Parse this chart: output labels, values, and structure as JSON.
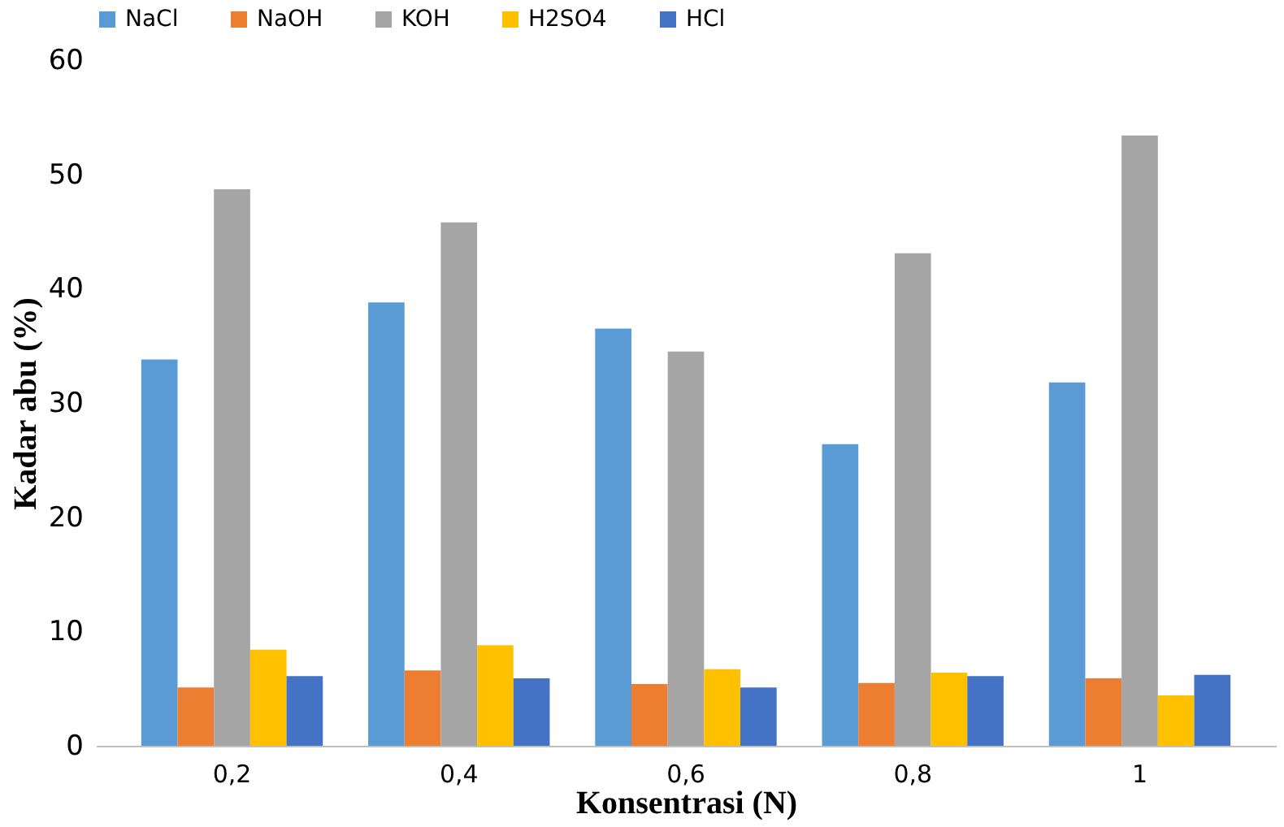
{
  "chart_data": {
    "type": "bar",
    "xlabel": "Konsentrasi (N)",
    "ylabel": "Kadar abu (%)",
    "categories": [
      "0,2",
      "0,4",
      "0,6",
      "0,8",
      "1"
    ],
    "series": [
      {
        "name": "NaCl",
        "color": "#5b9bd5",
        "values": [
          33.8,
          38.8,
          36.5,
          26.4,
          31.8
        ]
      },
      {
        "name": "NaOH",
        "color": "#ed7d31",
        "values": [
          5.1,
          6.6,
          5.4,
          5.5,
          5.9
        ]
      },
      {
        "name": "KOH",
        "color": "#a5a5a5",
        "values": [
          48.7,
          45.8,
          34.5,
          43.1,
          53.4
        ]
      },
      {
        "name": "H2SO4",
        "color": "#ffc000",
        "values": [
          8.4,
          8.8,
          6.7,
          6.4,
          4.4
        ]
      },
      {
        "name": "HCl",
        "color": "#4472c4",
        "values": [
          6.1,
          5.9,
          5.1,
          6.1,
          6.2
        ]
      }
    ],
    "ylim": [
      0,
      60
    ],
    "yticks": [
      0,
      10,
      20,
      30,
      40,
      50,
      60
    ],
    "grid": false,
    "legend": "top"
  }
}
